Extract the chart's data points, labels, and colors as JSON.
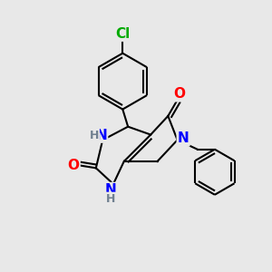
{
  "background_color": "#e8e8e8",
  "bond_color": "#000000",
  "bond_width": 1.5,
  "atom_colors": {
    "N": "#0000ff",
    "O": "#ff0000",
    "Cl": "#00aa00",
    "H_label": "#708090"
  },
  "font_size_atom": 11,
  "font_size_h": 9
}
